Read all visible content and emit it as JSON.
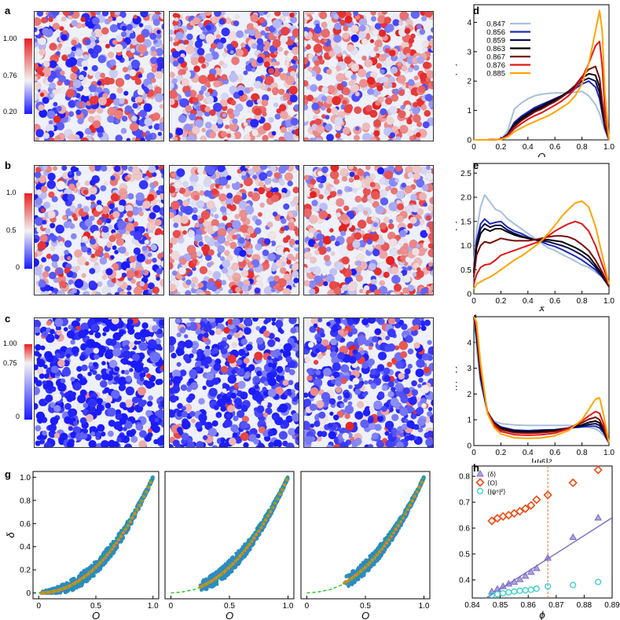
{
  "colors": {
    "blue": "#1a1aff",
    "red": "#e62020",
    "white": "#f2f2f2",
    "scatter": "#2b8cbe",
    "fit": "#f08020",
    "guide": "#22cc22"
  },
  "panels": {
    "a": {
      "letter": "a",
      "colorbar_ticks": [
        "1.00",
        "0.76",
        "0.20"
      ]
    },
    "b": {
      "letter": "b",
      "colorbar_ticks": [
        "1.0",
        "0.5",
        "0"
      ]
    },
    "c": {
      "letter": "c",
      "colorbar_ticks": [
        "1.00",
        "0.75",
        "0"
      ]
    },
    "d": {
      "letter": "d"
    },
    "e": {
      "letter": "e"
    },
    "f": {
      "letter": "f"
    },
    "g": {
      "letter": "g"
    },
    "h": {
      "letter": "h"
    }
  },
  "chart_data": [
    {
      "id": "d",
      "type": "line",
      "xlabel": "O",
      "ylabel": "P(O)",
      "xlim": [
        0,
        1.0
      ],
      "ylim": [
        0,
        4.6
      ],
      "xticks": [
        "0",
        "0.2",
        "0.4",
        "0.6",
        "0.8",
        "1.0"
      ],
      "yticks": [
        "0",
        "1",
        "2",
        "3",
        "4"
      ],
      "legend_position": "top-left",
      "x": [
        0,
        0.1,
        0.2,
        0.25,
        0.3,
        0.35,
        0.4,
        0.45,
        0.5,
        0.55,
        0.6,
        0.65,
        0.7,
        0.75,
        0.8,
        0.85,
        0.9,
        0.93,
        0.95,
        0.97,
        1.0
      ],
      "series": [
        {
          "name": "0.847",
          "color": "#a8bfdc",
          "values": [
            0,
            0,
            0.02,
            0.3,
            1.05,
            1.25,
            1.4,
            1.5,
            1.55,
            1.58,
            1.6,
            1.6,
            1.6,
            1.62,
            1.65,
            1.5,
            1.2,
            0.9,
            0.6,
            0.3,
            0
          ]
        },
        {
          "name": "0.856",
          "color": "#1c2ab8",
          "values": [
            0,
            0,
            0.02,
            0.2,
            0.6,
            0.8,
            0.95,
            1.1,
            1.2,
            1.3,
            1.4,
            1.5,
            1.6,
            1.75,
            1.9,
            2.0,
            1.8,
            1.4,
            0.9,
            0.4,
            0
          ]
        },
        {
          "name": "0.859",
          "color": "#0a0a50",
          "values": [
            0,
            0,
            0.02,
            0.18,
            0.55,
            0.75,
            0.9,
            1.05,
            1.15,
            1.28,
            1.4,
            1.5,
            1.65,
            1.8,
            2.0,
            2.1,
            2.0,
            1.6,
            1.0,
            0.45,
            0
          ]
        },
        {
          "name": "0.863",
          "color": "#000000",
          "values": [
            0,
            0,
            0.02,
            0.17,
            0.5,
            0.7,
            0.85,
            1.0,
            1.1,
            1.22,
            1.35,
            1.48,
            1.65,
            1.85,
            2.1,
            2.25,
            2.2,
            1.8,
            1.1,
            0.5,
            0
          ]
        },
        {
          "name": "0.867",
          "color": "#7a0a0a",
          "values": [
            0,
            0,
            0.02,
            0.16,
            0.45,
            0.65,
            0.8,
            0.95,
            1.05,
            1.18,
            1.3,
            1.45,
            1.62,
            1.85,
            2.15,
            2.4,
            2.5,
            2.1,
            1.3,
            0.55,
            0
          ]
        },
        {
          "name": "0.876",
          "color": "#e01818",
          "values": [
            0,
            0,
            0.02,
            0.14,
            0.38,
            0.55,
            0.7,
            0.82,
            0.92,
            1.05,
            1.18,
            1.32,
            1.5,
            1.75,
            2.1,
            2.6,
            3.2,
            3.35,
            2.5,
            1.0,
            0
          ]
        },
        {
          "name": "0.885",
          "color": "#ffa500",
          "values": [
            0,
            0,
            0.01,
            0.1,
            0.28,
            0.4,
            0.52,
            0.62,
            0.72,
            0.82,
            0.95,
            1.1,
            1.25,
            1.5,
            1.9,
            2.6,
            3.7,
            4.4,
            3.7,
            1.6,
            0
          ]
        }
      ]
    },
    {
      "id": "e",
      "type": "line",
      "xlabel": "δ",
      "ylabel": "P(δ)",
      "xlim": [
        0,
        1.0
      ],
      "ylim": [
        0,
        2.7
      ],
      "xticks": [
        "0",
        "0.2",
        "0.4",
        "0.6",
        "0.8",
        "1.0"
      ],
      "yticks": [
        "0",
        "0.5",
        "1.0",
        "1.5",
        "2.0",
        "2.5"
      ],
      "x": [
        0,
        0.02,
        0.05,
        0.08,
        0.12,
        0.16,
        0.2,
        0.25,
        0.3,
        0.35,
        0.4,
        0.45,
        0.5,
        0.55,
        0.6,
        0.65,
        0.7,
        0.75,
        0.8,
        0.85,
        0.9,
        0.95,
        1.0
      ],
      "series": [
        {
          "name": "0.847",
          "color": "#a8bfdc",
          "values": [
            0.6,
            1.3,
            1.8,
            2.05,
            1.9,
            1.75,
            1.7,
            1.55,
            1.45,
            1.35,
            1.25,
            1.15,
            1.05,
            0.95,
            0.9,
            0.82,
            0.75,
            0.68,
            0.6,
            0.55,
            0.45,
            0.35,
            0.2
          ]
        },
        {
          "name": "0.856",
          "color": "#1c2ab8",
          "values": [
            0.5,
            1.1,
            1.45,
            1.55,
            1.45,
            1.48,
            1.5,
            1.38,
            1.3,
            1.25,
            1.18,
            1.12,
            1.08,
            1.02,
            0.98,
            0.92,
            0.85,
            0.78,
            0.7,
            0.6,
            0.5,
            0.35,
            0.15
          ]
        },
        {
          "name": "0.859",
          "color": "#0a0a50",
          "values": [
            0.45,
            1.0,
            1.35,
            1.45,
            1.38,
            1.42,
            1.42,
            1.32,
            1.25,
            1.2,
            1.15,
            1.12,
            1.1,
            1.08,
            1.04,
            1.0,
            0.95,
            0.88,
            0.8,
            0.7,
            0.55,
            0.38,
            0.15
          ]
        },
        {
          "name": "0.863",
          "color": "#000000",
          "values": [
            0.42,
            0.95,
            1.25,
            1.35,
            1.3,
            1.35,
            1.35,
            1.28,
            1.22,
            1.18,
            1.15,
            1.12,
            1.12,
            1.12,
            1.1,
            1.08,
            1.02,
            0.96,
            0.88,
            0.78,
            0.6,
            0.4,
            0.15
          ]
        },
        {
          "name": "0.867",
          "color": "#7a0a0a",
          "values": [
            0.35,
            0.8,
            1.0,
            1.08,
            1.05,
            1.1,
            1.15,
            1.12,
            1.1,
            1.1,
            1.1,
            1.12,
            1.15,
            1.18,
            1.2,
            1.2,
            1.18,
            1.12,
            1.02,
            0.9,
            0.7,
            0.45,
            0.15
          ]
        },
        {
          "name": "0.876",
          "color": "#e01818",
          "values": [
            0.2,
            0.4,
            0.55,
            0.6,
            0.62,
            0.7,
            0.8,
            0.85,
            0.9,
            0.95,
            1.0,
            1.05,
            1.1,
            1.2,
            1.3,
            1.38,
            1.45,
            1.5,
            1.45,
            1.3,
            1.0,
            0.6,
            0.2
          ]
        },
        {
          "name": "0.885",
          "color": "#ffa500",
          "values": [
            0.1,
            0.2,
            0.25,
            0.3,
            0.35,
            0.42,
            0.5,
            0.6,
            0.7,
            0.78,
            0.88,
            0.98,
            1.1,
            1.25,
            1.42,
            1.6,
            1.75,
            1.88,
            1.92,
            1.8,
            1.4,
            0.8,
            0.2
          ]
        }
      ]
    },
    {
      "id": "f",
      "type": "line",
      "xlabel": "|ψ⁶|²",
      "ylabel": "P(|ψ⁶|²)",
      "xlim": [
        0,
        1.0
      ],
      "ylim": [
        0,
        5
      ],
      "xticks": [
        "0",
        "0.2",
        "0.4",
        "0.6",
        "0.8",
        "1.0"
      ],
      "yticks": [
        "0",
        "1",
        "2",
        "3",
        "4"
      ],
      "x": [
        0,
        0.02,
        0.05,
        0.1,
        0.15,
        0.2,
        0.3,
        0.4,
        0.5,
        0.6,
        0.7,
        0.8,
        0.85,
        0.9,
        0.93,
        0.96,
        1.0
      ],
      "series": [
        {
          "name": "0.847",
          "color": "#a8bfdc",
          "values": [
            5,
            3.8,
            2.4,
            1.3,
            0.95,
            0.85,
            0.8,
            0.78,
            0.78,
            0.78,
            0.78,
            0.75,
            0.7,
            0.65,
            0.55,
            0.4,
            0.1
          ]
        },
        {
          "name": "0.856",
          "color": "#1c2ab8",
          "values": [
            5,
            4.2,
            2.6,
            1.3,
            0.9,
            0.72,
            0.6,
            0.58,
            0.6,
            0.62,
            0.68,
            0.72,
            0.75,
            0.75,
            0.68,
            0.5,
            0.1
          ]
        },
        {
          "name": "0.859",
          "color": "#0a0a50",
          "values": [
            5,
            4.3,
            2.7,
            1.3,
            0.88,
            0.7,
            0.58,
            0.55,
            0.58,
            0.6,
            0.68,
            0.76,
            0.82,
            0.85,
            0.78,
            0.55,
            0.1
          ]
        },
        {
          "name": "0.863",
          "color": "#000000",
          "values": [
            5,
            4.4,
            2.8,
            1.32,
            0.86,
            0.66,
            0.55,
            0.52,
            0.55,
            0.58,
            0.68,
            0.8,
            0.9,
            0.95,
            0.88,
            0.6,
            0.1
          ]
        },
        {
          "name": "0.867",
          "color": "#7a0a0a",
          "values": [
            5,
            4.5,
            2.9,
            1.32,
            0.84,
            0.62,
            0.5,
            0.48,
            0.5,
            0.55,
            0.68,
            0.88,
            1.02,
            1.1,
            1.0,
            0.68,
            0.1
          ]
        },
        {
          "name": "0.876",
          "color": "#e01818",
          "values": [
            5,
            4.6,
            3.0,
            1.3,
            0.78,
            0.55,
            0.42,
            0.4,
            0.42,
            0.48,
            0.65,
            0.95,
            1.15,
            1.32,
            1.25,
            0.85,
            0.1
          ]
        },
        {
          "name": "0.885",
          "color": "#ffa500",
          "values": [
            5,
            4.8,
            3.2,
            1.25,
            0.7,
            0.45,
            0.3,
            0.28,
            0.3,
            0.38,
            0.58,
            1.0,
            1.4,
            1.8,
            1.85,
            1.2,
            0.1
          ]
        }
      ]
    },
    {
      "id": "g",
      "type": "scatter",
      "xlabel": "O",
      "ylabel": "δ",
      "xlim": [
        -0.05,
        1.05
      ],
      "ylim": [
        -0.05,
        1.05
      ],
      "xticks": [
        "0",
        "0.5",
        "1.0"
      ],
      "yticks": [
        "0",
        "0.2",
        "0.4",
        "0.6",
        "0.8",
        "1.0"
      ],
      "fit_x": [
        0.0,
        0.1,
        0.2,
        0.3,
        0.4,
        0.5,
        0.6,
        0.7,
        0.8,
        0.9,
        1.0
      ],
      "fit_y": [
        0.0,
        0.01,
        0.03,
        0.07,
        0.13,
        0.22,
        0.34,
        0.48,
        0.63,
        0.8,
        1.0
      ],
      "subplots": [
        {
          "o_range": [
            0.02,
            1.0
          ]
        },
        {
          "o_range": [
            0.25,
            1.0
          ]
        },
        {
          "o_range": [
            0.32,
            1.0
          ]
        }
      ]
    },
    {
      "id": "h",
      "type": "scatter",
      "xlabel": "ϕ",
      "xlim": [
        0.84,
        0.89
      ],
      "ylim": [
        0.33,
        0.84
      ],
      "xticks": [
        "0.84",
        "0.85",
        "0.86",
        "0.87",
        "0.88",
        "0.89"
      ],
      "yticks": [
        "0.4",
        "0.5",
        "0.6",
        "0.7",
        "0.8"
      ],
      "vline": 0.867,
      "legend_position": "top-left",
      "series": [
        {
          "name": "⟨δ⟩",
          "marker": "triangle",
          "color": "#7b68c8",
          "x": [
            0.847,
            0.849,
            0.851,
            0.853,
            0.855,
            0.857,
            0.859,
            0.861,
            0.863,
            0.867,
            0.876,
            0.885
          ],
          "values": [
            0.355,
            0.365,
            0.375,
            0.385,
            0.392,
            0.402,
            0.415,
            0.43,
            0.445,
            0.485,
            0.565,
            0.64
          ]
        },
        {
          "name": "⟨O⟩",
          "marker": "diamond",
          "color": "#f04a10",
          "x": [
            0.847,
            0.849,
            0.851,
            0.853,
            0.855,
            0.857,
            0.859,
            0.861,
            0.863,
            0.867,
            0.876,
            0.885
          ],
          "values": [
            0.628,
            0.638,
            0.645,
            0.65,
            0.657,
            0.665,
            0.675,
            0.688,
            0.71,
            0.728,
            0.775,
            0.825
          ]
        },
        {
          "name": "⟨|ψ⁶|²⟩",
          "marker": "circle",
          "color": "#40d0d0",
          "x": [
            0.847,
            0.849,
            0.851,
            0.853,
            0.855,
            0.857,
            0.859,
            0.861,
            0.863,
            0.867,
            0.876,
            0.885
          ],
          "values": [
            0.342,
            0.345,
            0.348,
            0.352,
            0.355,
            0.358,
            0.36,
            0.362,
            0.366,
            0.375,
            0.38,
            0.392
          ]
        }
      ],
      "fit_line": {
        "x": [
          0.845,
          0.89
        ],
        "y": [
          0.33,
          0.64
        ]
      }
    }
  ]
}
